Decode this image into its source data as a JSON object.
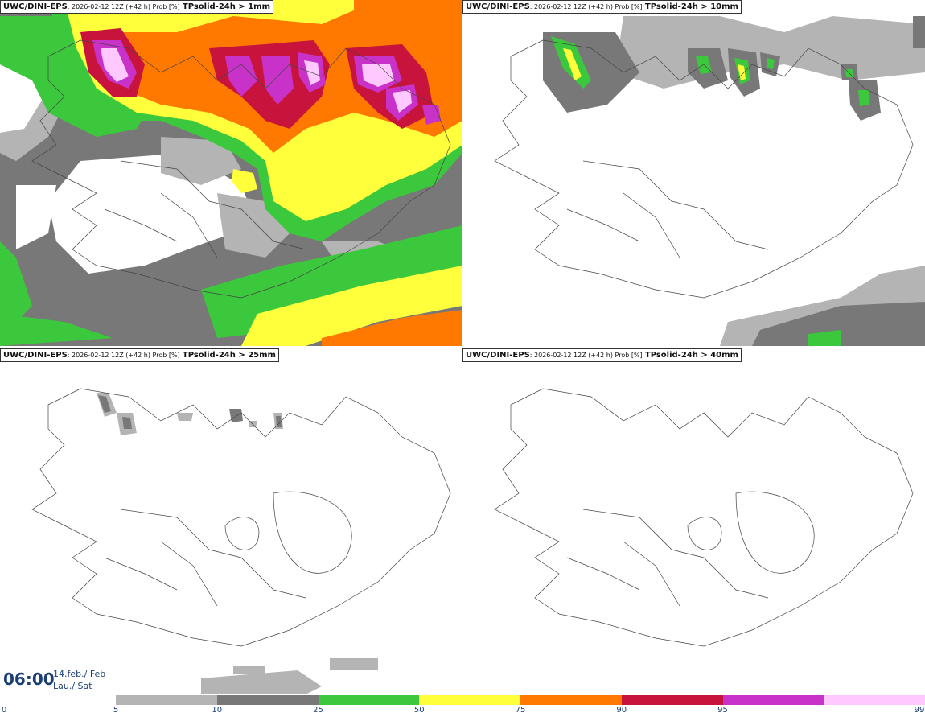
{
  "panels": [
    {
      "model": "UWC/DINI-EPS",
      "meta": ": 2026-02-12 12Z (+42 h) Prob [%]",
      "field": "TPsolid-24h > 1mm"
    },
    {
      "model": "UWC/DINI-EPS",
      "meta": ": 2026-02-12 12Z (+42 h) Prob [%]",
      "field": "TPsolid-24h > 10mm"
    },
    {
      "model": "UWC/DINI-EPS",
      "meta": ": 2026-02-12 12Z (+42 h) Prob [%]",
      "field": "TPsolid-24h > 25mm"
    },
    {
      "model": "UWC/DINI-EPS",
      "meta": ": 2026-02-12 12Z (+42 h) Prob [%]",
      "field": "TPsolid-24h > 40mm"
    }
  ],
  "valid_time": {
    "time": "06:00",
    "date_line1": "14.feb./ Feb",
    "date_line2": "Lau./ Sat"
  },
  "colorbar": {
    "ticks": [
      "0",
      "5",
      "10",
      "25",
      "50",
      "75",
      "90",
      "95",
      "99"
    ],
    "colors": [
      "#b4b4b4",
      "#787878",
      "#3cc83c",
      "#ffff3c",
      "#ff7800",
      "#c8143c",
      "#c832c8",
      "#ffc8ff"
    ]
  }
}
